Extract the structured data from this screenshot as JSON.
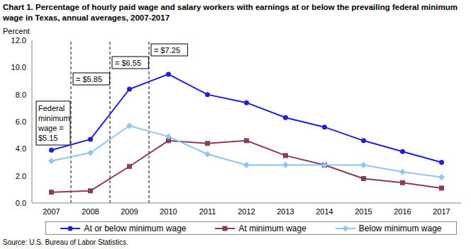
{
  "chart_data": {
    "type": "line",
    "title": "Chart 1. Percentage of hourly paid wage and salary workers with earnings at or below the prevailing federal minimum wage in Texas, annual averages, 2007-2017",
    "y_label": "Percent",
    "source": "Source: U.S. Bureau of Labor Statistics.",
    "x": [
      2007,
      2008,
      2009,
      2010,
      2011,
      2012,
      2013,
      2014,
      2015,
      2016,
      2017
    ],
    "xlim": [
      2006.5,
      2017.5
    ],
    "xticks": [
      2007,
      2008,
      2009,
      2010,
      2011,
      2012,
      2013,
      2014,
      2015,
      2016,
      2017
    ],
    "ylim": [
      0,
      12
    ],
    "yticks": [
      {
        "value": 0,
        "label": "0.0"
      },
      {
        "value": 2,
        "label": "2.0"
      },
      {
        "value": 4,
        "label": "4.0"
      },
      {
        "value": 6,
        "label": "6.0"
      },
      {
        "value": 8,
        "label": "8.0"
      },
      {
        "value": 10,
        "label": "10.0"
      },
      {
        "value": 12,
        "label": "12.0"
      }
    ],
    "grid": false,
    "legend": "bottom",
    "reference_lines": [
      2007.5,
      2008.5,
      2009.5
    ],
    "annotations": [
      "Federal minimum wage = $5.15",
      "= $5.85",
      "= $6.55",
      "= $7.25"
    ],
    "series": [
      {
        "name": "At or below minimum wage",
        "color": "#2020d0",
        "marker": "circle",
        "values": [
          3.9,
          4.7,
          8.4,
          9.5,
          8.0,
          7.4,
          6.3,
          5.6,
          4.6,
          3.8,
          3.0
        ]
      },
      {
        "name": "At minimum wage",
        "color": "#8b3a62",
        "marker": "square",
        "values": [
          0.8,
          0.9,
          2.7,
          4.6,
          4.4,
          4.6,
          3.5,
          2.8,
          1.8,
          1.5,
          1.1
        ]
      },
      {
        "name": "Below minimum wage",
        "color": "#92c5f0",
        "marker": "diamond",
        "values": [
          3.1,
          3.7,
          5.7,
          4.9,
          3.6,
          2.8,
          2.8,
          2.8,
          2.8,
          2.3,
          1.9
        ]
      }
    ]
  }
}
